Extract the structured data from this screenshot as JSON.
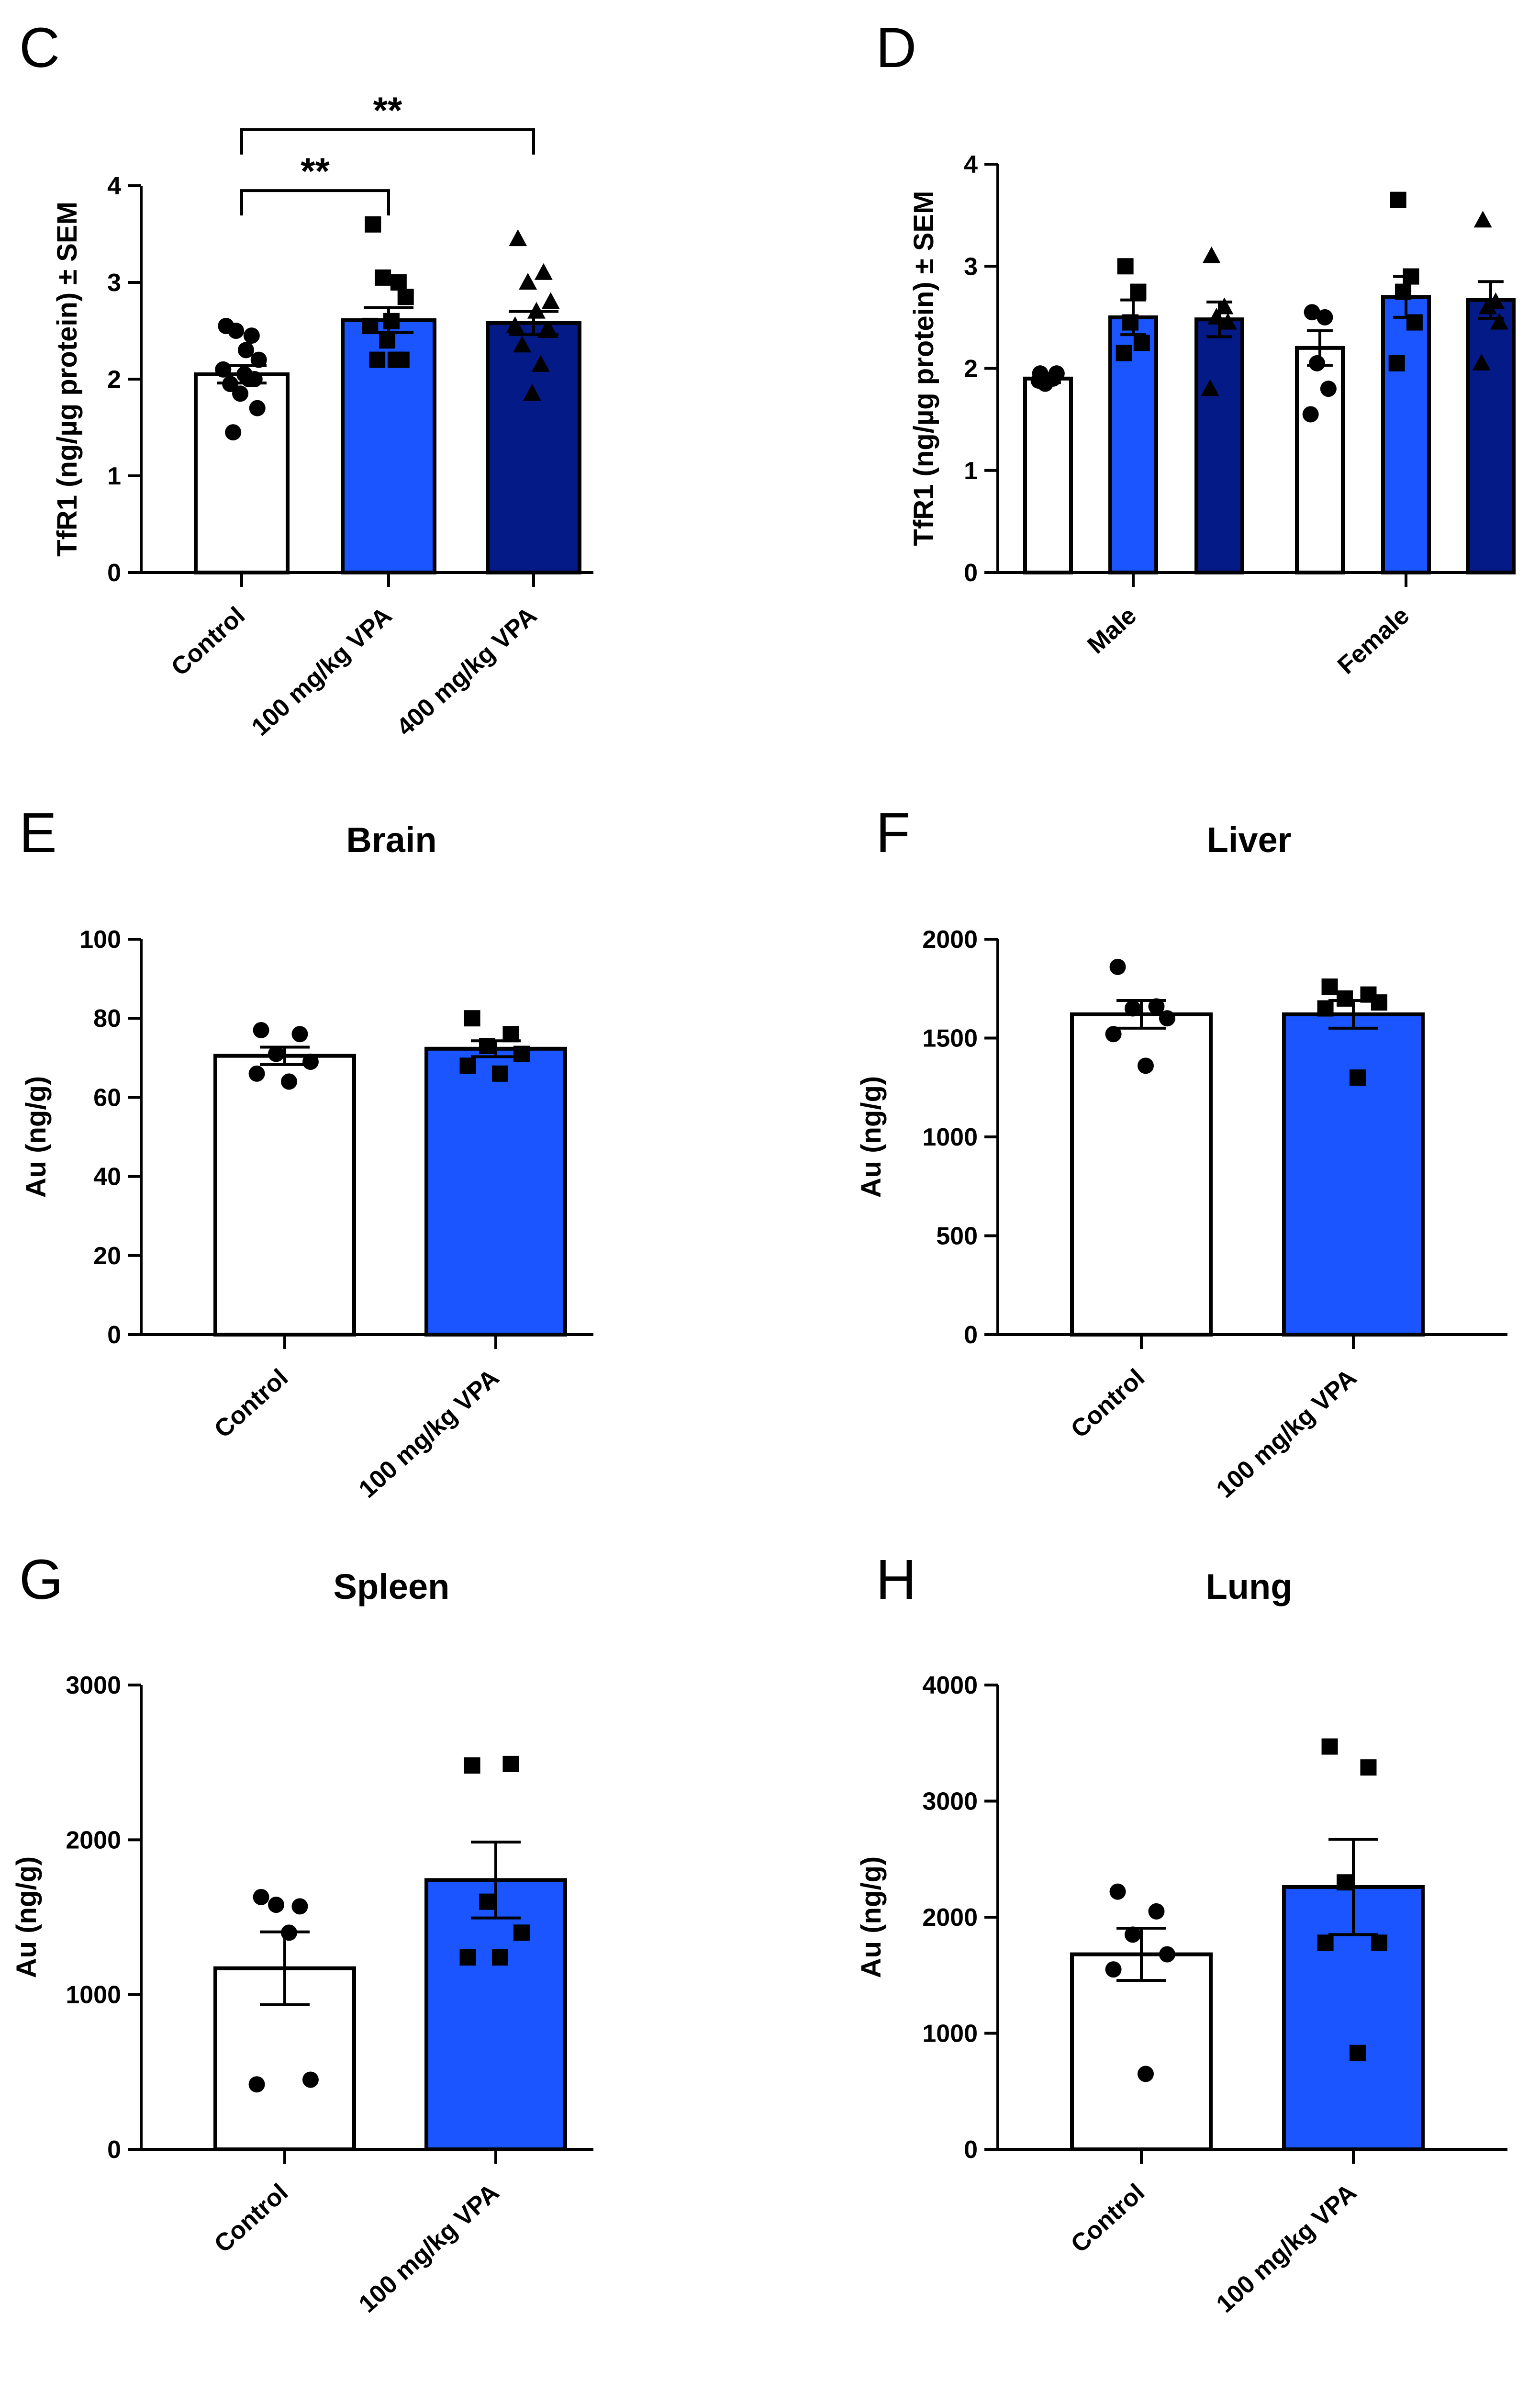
{
  "colors": {
    "control": "#ffffff",
    "vpa100": "#1a55ff",
    "vpa400": "#041a87",
    "ink": "#000000"
  },
  "chart_data": [
    {
      "panel": "C",
      "type": "bar",
      "title": "",
      "ylabel": "TfR1 (ng/µg protein) ± SEM",
      "ylim": [
        0,
        4
      ],
      "yticks": [
        0,
        1,
        2,
        3,
        4
      ],
      "categories": [
        "Control",
        "100 mg/kg VPA",
        "400 mg/kg VPA"
      ],
      "bars": [
        {
          "label": "Control",
          "color": "control",
          "marker": "circle",
          "mean": 2.05,
          "sem": 0.09,
          "points": [
            2.55,
            2.45,
            2.5,
            2.2,
            2.1,
            2.05,
            2.0,
            1.95,
            2.0,
            1.85,
            1.7,
            1.45,
            2.3
          ]
        },
        {
          "label": "100 mg/kg VPA",
          "color": "vpa100",
          "marker": "square",
          "mean": 2.61,
          "sem": 0.13,
          "points": [
            3.6,
            3.0,
            3.05,
            2.85,
            2.55,
            2.6,
            2.2,
            2.2,
            2.2,
            2.4
          ]
        },
        {
          "label": "400 mg/kg VPA",
          "color": "vpa400",
          "marker": "triangle",
          "mean": 2.58,
          "sem": 0.12,
          "points": [
            3.45,
            3.1,
            3.0,
            2.8,
            2.55,
            2.7,
            2.5,
            2.35,
            2.15,
            1.85,
            2.5
          ]
        }
      ],
      "significance": [
        {
          "from": 0,
          "to": 1,
          "label": "**",
          "y": 3.95
        },
        {
          "from": 0,
          "to": 2,
          "label": "**",
          "y": 4.58
        }
      ]
    },
    {
      "panel": "D",
      "type": "bar",
      "title": "",
      "ylabel": "TfR1 (ng/µg protein) ± SEM",
      "ylim": [
        0,
        4
      ],
      "yticks": [
        0,
        1,
        2,
        3,
        4
      ],
      "categories": [
        "Male",
        "Female"
      ],
      "bars": [
        {
          "group": "Male",
          "label": "Control",
          "color": "control",
          "marker": "circle",
          "mean": 1.9,
          "sem": 0.04,
          "points": [
            1.95,
            1.9,
            1.85,
            1.95,
            1.88
          ]
        },
        {
          "group": "Male",
          "label": "100 mg/kg VPA",
          "color": "vpa100",
          "marker": "square",
          "mean": 2.5,
          "sem": 0.17,
          "points": [
            3.0,
            2.75,
            2.45,
            2.25,
            2.15
          ]
        },
        {
          "group": "Male",
          "label": "400 mg/kg VPA",
          "color": "vpa400",
          "marker": "triangle",
          "mean": 2.48,
          "sem": 0.17,
          "points": [
            3.1,
            2.6,
            2.5,
            2.45,
            1.8
          ]
        },
        {
          "group": "Female",
          "label": "Control",
          "color": "control",
          "marker": "circle",
          "mean": 2.2,
          "sem": 0.17,
          "points": [
            2.55,
            2.5,
            2.05,
            1.8,
            1.55
          ]
        },
        {
          "group": "Female",
          "label": "100 mg/kg VPA",
          "color": "vpa100",
          "marker": "square",
          "mean": 2.7,
          "sem": 0.2,
          "points": [
            3.65,
            2.9,
            2.75,
            2.45,
            2.05
          ]
        },
        {
          "group": "Female",
          "label": "400 mg/kg VPA",
          "color": "vpa400",
          "marker": "triangle",
          "mean": 2.67,
          "sem": 0.18,
          "points": [
            3.45,
            2.65,
            2.6,
            2.45,
            2.05
          ]
        }
      ],
      "significance": []
    },
    {
      "panel": "E",
      "type": "bar",
      "title": "Brain",
      "ylabel": "Au (ng/g)",
      "ylim": [
        0,
        100
      ],
      "yticks": [
        0,
        20,
        40,
        60,
        80,
        100
      ],
      "categories": [
        "Control",
        "100 mg/kg VPA"
      ],
      "bars": [
        {
          "label": "Control",
          "color": "control",
          "marker": "circle",
          "mean": 70.5,
          "sem": 2.2,
          "points": [
            77,
            76,
            71,
            69,
            66,
            64
          ]
        },
        {
          "label": "100 mg/kg VPA",
          "color": "vpa100",
          "marker": "square",
          "mean": 72.3,
          "sem": 2.0,
          "points": [
            80,
            76,
            73,
            71,
            68,
            66
          ]
        }
      ],
      "significance": []
    },
    {
      "panel": "F",
      "type": "bar",
      "title": "Liver",
      "ylabel": "Au (ng/g)",
      "ylim": [
        0,
        2000
      ],
      "yticks": [
        0,
        500,
        1000,
        1500,
        2000
      ],
      "categories": [
        "Control",
        "100 mg/kg VPA"
      ],
      "bars": [
        {
          "label": "Control",
          "color": "control",
          "marker": "circle",
          "mean": 1620,
          "sem": 70,
          "points": [
            1860,
            1660,
            1650,
            1600,
            1520,
            1360
          ]
        },
        {
          "label": "100 mg/kg VPA",
          "color": "vpa100",
          "marker": "square",
          "mean": 1620,
          "sem": 70,
          "points": [
            1760,
            1720,
            1700,
            1680,
            1650,
            1300
          ]
        }
      ],
      "significance": []
    },
    {
      "panel": "G",
      "type": "bar",
      "title": "Spleen",
      "ylabel": "Au (ng/g)",
      "ylim": [
        0,
        3000
      ],
      "yticks": [
        0,
        1000,
        2000,
        3000
      ],
      "categories": [
        "Control",
        "100 mg/kg VPA"
      ],
      "bars": [
        {
          "label": "Control",
          "color": "control",
          "marker": "circle",
          "mean": 1170,
          "sem": 235,
          "points": [
            1630,
            1570,
            1580,
            450,
            420,
            1400
          ]
        },
        {
          "label": "100 mg/kg VPA",
          "color": "vpa100",
          "marker": "square",
          "mean": 1740,
          "sem": 245,
          "points": [
            2480,
            2490,
            1600,
            1400,
            1240,
            1240
          ]
        }
      ],
      "significance": []
    },
    {
      "panel": "H",
      "type": "bar",
      "title": "Lung",
      "ylabel": "Au (ng/g)",
      "ylim": [
        0,
        4000
      ],
      "yticks": [
        0,
        1000,
        2000,
        3000,
        4000
      ],
      "categories": [
        "Control",
        "100 mg/kg VPA"
      ],
      "bars": [
        {
          "label": "Control",
          "color": "control",
          "marker": "circle",
          "mean": 1680,
          "sem": 225,
          "points": [
            2220,
            2050,
            1850,
            1680,
            1550,
            650
          ]
        },
        {
          "label": "100 mg/kg VPA",
          "color": "vpa100",
          "marker": "square",
          "mean": 2260,
          "sem": 410,
          "points": [
            3470,
            3290,
            2300,
            1780,
            1780,
            830
          ]
        }
      ],
      "significance": []
    }
  ]
}
